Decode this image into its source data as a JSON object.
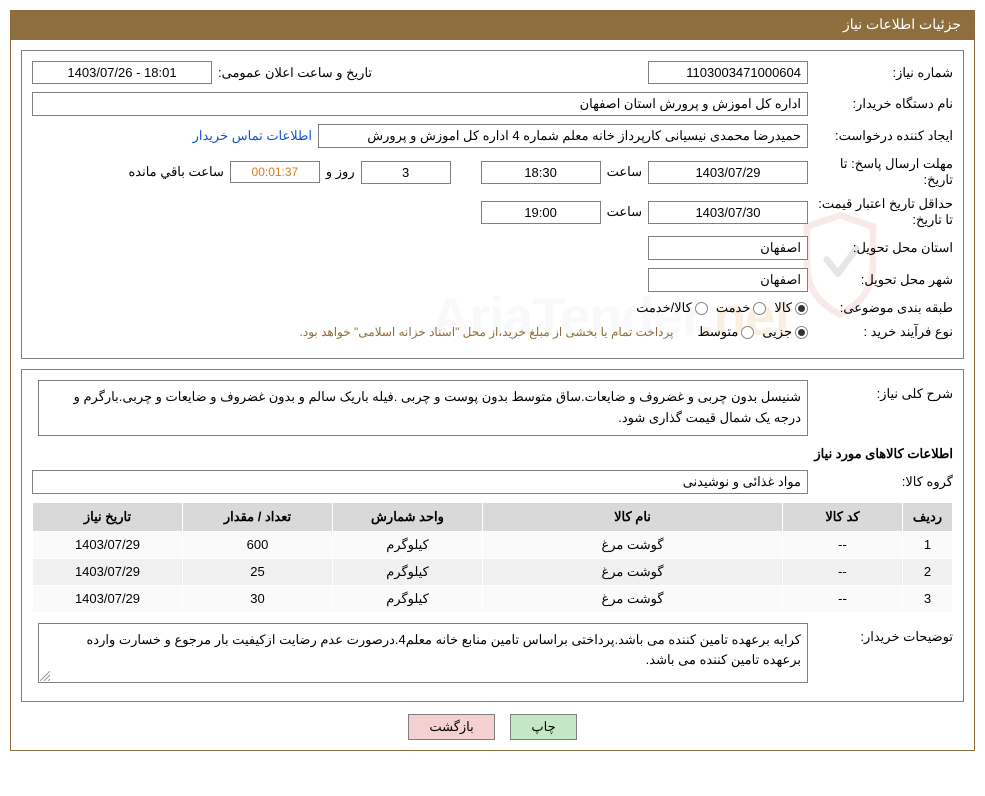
{
  "header": {
    "title": "جزئیات اطلاعات نیاز"
  },
  "form": {
    "need_number_label": "شماره نیاز:",
    "need_number": "1103003471000604",
    "announce_label": "تاریخ و ساعت اعلان عمومی:",
    "announce_value": "1403/07/26 - 18:01",
    "buyer_org_label": "نام دستگاه خریدار:",
    "buyer_org": "اداره کل اموزش و پرورش استان اصفهان",
    "requester_label": "ایجاد کننده درخواست:",
    "requester": "حمیدرضا محمدی نیسیانی کارپرداز خانه معلم شماره 4 اداره کل اموزش و پرورش",
    "buyer_contact_link": "اطلاعات تماس خریدار",
    "response_deadline_label": "مهلت ارسال پاسخ:",
    "to_word": "تا تاریخ:",
    "response_date": "1403/07/29",
    "time_word": "ساعت",
    "response_time": "18:30",
    "days_count": "3",
    "days_word": "روز و",
    "time_left": "00:01:37",
    "time_left_word": "ساعت باقي مانده",
    "price_validity_label": "حداقل تاریخ اعتبار قیمت:",
    "price_date": "1403/07/30",
    "price_time": "19:00",
    "delivery_province_label": "استان محل تحویل:",
    "delivery_province": "اصفهان",
    "delivery_city_label": "شهر محل تحویل:",
    "delivery_city": "اصفهان",
    "category_label": "طبقه بندی موضوعی:",
    "cat_kala": "کالا",
    "cat_khedmat": "خدمت",
    "cat_both": "کالا/خدمت",
    "purchase_type_label": "نوع فرآیند خرید :",
    "pt_partial": "جزیی",
    "pt_medium": "متوسط",
    "payment_note": "پرداخت تمام یا بخشی از مبلغ خرید،از محل \"اسناد خزانه اسلامی\" خواهد بود."
  },
  "details": {
    "general_desc_label": "شرح کلی نیاز:",
    "general_desc": "شنیسل بدون چربی و غضروف و ضایعات.ساق متوسط بدون پوست و چربی .فیله باریک سالم و بدون غضروف و ضایعات و چربی.بارگرم و درجه یک شمال قیمت گذاری شود.",
    "items_heading": "اطلاعات کالاهای مورد نیاز",
    "group_label": "گروه کالا:",
    "group_value": "مواد غذائی و نوشیدنی",
    "buyer_notes_label": "توضیحات خریدار:",
    "buyer_notes": "کرایه برعهده تامین کننده می باشد.پرداختی براساس تامین منابع خانه معلم4.درصورت عدم رضایت ازکیفیت بار مرجوع و خسارت وارده برعهده تامین کننده می باشد."
  },
  "table": {
    "columns": [
      "ردیف",
      "کد کالا",
      "نام کالا",
      "واحد شمارش",
      "تعداد / مقدار",
      "تاریخ نیاز"
    ],
    "col_widths": [
      "50px",
      "120px",
      "auto",
      "150px",
      "150px",
      "150px"
    ],
    "rows": [
      [
        "1",
        "--",
        "گوشت مرغ",
        "کیلوگرم",
        "600",
        "1403/07/29"
      ],
      [
        "2",
        "--",
        "گوشت مرغ",
        "کیلوگرم",
        "25",
        "1403/07/29"
      ],
      [
        "3",
        "--",
        "گوشت مرغ",
        "کیلوگرم",
        "30",
        "1403/07/29"
      ]
    ]
  },
  "buttons": {
    "print": "چاپ",
    "back": "بازگشت"
  },
  "colors": {
    "header_bg": "#8f6e3e",
    "border": "#808080",
    "table_header_bg": "#d9d9d9",
    "link": "#1155cc",
    "orange": "#d97a1e"
  }
}
